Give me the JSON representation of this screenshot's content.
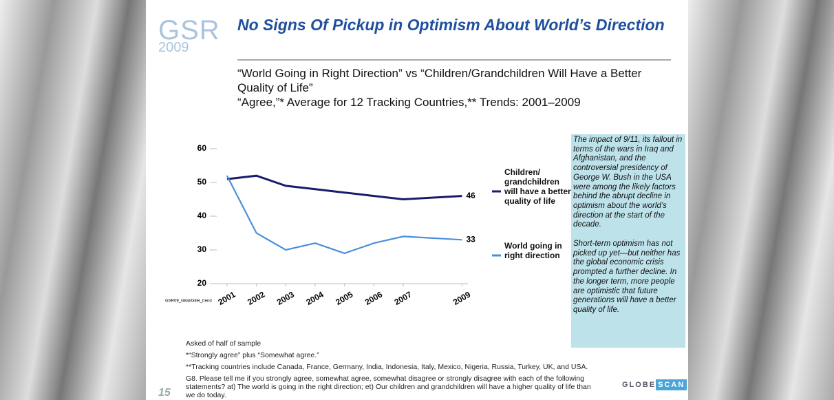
{
  "logo": {
    "name": "GSR",
    "year": "2009"
  },
  "header": {
    "title": "No Signs Of Pickup in Optimism About World’s Direction",
    "subtitle": [
      "“World Going in Right Direction” vs “Children/Grandchildren Will Have a Better Quality of Life”",
      "“Agree,”* Average for 12 Tracking Countries,** Trends: 2001–2009"
    ]
  },
  "chart_data": {
    "type": "line",
    "source": "GSR09_G8at/G8et_trend",
    "x": [
      2001,
      2002,
      2003,
      2004,
      2005,
      2006,
      2007,
      2009
    ],
    "series": [
      {
        "name": "Children/ grandchildren will have a better quality of life",
        "color": "#1b1b6b",
        "values": [
          51,
          52,
          49,
          48,
          47,
          46,
          45,
          46
        ]
      },
      {
        "name": "World going in right direction",
        "color": "#4a8fdc",
        "values": [
          52,
          35,
          30,
          32,
          29,
          32,
          34,
          33
        ]
      }
    ],
    "xlim": [
      2000.65,
      2009.2
    ],
    "xticks": [
      2001,
      2002,
      2003,
      2004,
      2005,
      2006,
      2007,
      2009
    ],
    "ylim": [
      20,
      60
    ],
    "yticks": [
      20,
      30,
      40,
      50,
      60
    ],
    "grid": false,
    "legend": "right"
  },
  "sidebar": [
    "The impact of 9/11, its fallout in terms of the wars in Iraq and Afghanistan, and the controversial presidency of George W. Bush in the USA were among the likely factors behind the abrupt decline in optimism about the world’s direction at the start of the decade.",
    "Short-term optimism has not picked up yet—but neither has the global economic crisis prompted a further decline. In the longer term, more people are optimistic that future generations will have a better quality of life."
  ],
  "footnotes": [
    "Asked of half of sample",
    "*“Strongly agree” plus “Somewhat agree.”",
    "**Tracking countries include Canada, France, Germany, India, Indonesia, Italy, Mexico, Nigeria, Russia, Turkey, UK, and USA.",
    "G8. Please tell me if you strongly agree, somewhat agree, somewhat disagree or strongly disagree with each of the following statements? at) The world is going in the right direction; et) Our children and grandchildren will have a higher quality of life than we do today."
  ],
  "page_number": "15",
  "brand": {
    "left": "GLOBE",
    "right": "SCAN"
  }
}
